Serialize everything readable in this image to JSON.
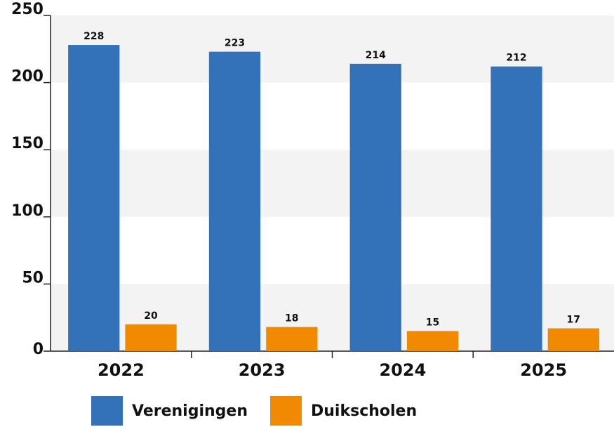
{
  "chart_data": {
    "type": "bar",
    "categories": [
      "2022",
      "2023",
      "2024",
      "2025"
    ],
    "series": [
      {
        "name": "Verenigingen",
        "color": "#3372b8",
        "values": [
          228,
          223,
          214,
          212
        ]
      },
      {
        "name": "Duikscholen",
        "color": "#f18a00",
        "values": [
          20,
          18,
          15,
          17
        ]
      }
    ],
    "ylim": [
      0,
      250
    ],
    "yticks": [
      0,
      50,
      100,
      150,
      200,
      250
    ],
    "grid": true,
    "legend": "bottom"
  }
}
